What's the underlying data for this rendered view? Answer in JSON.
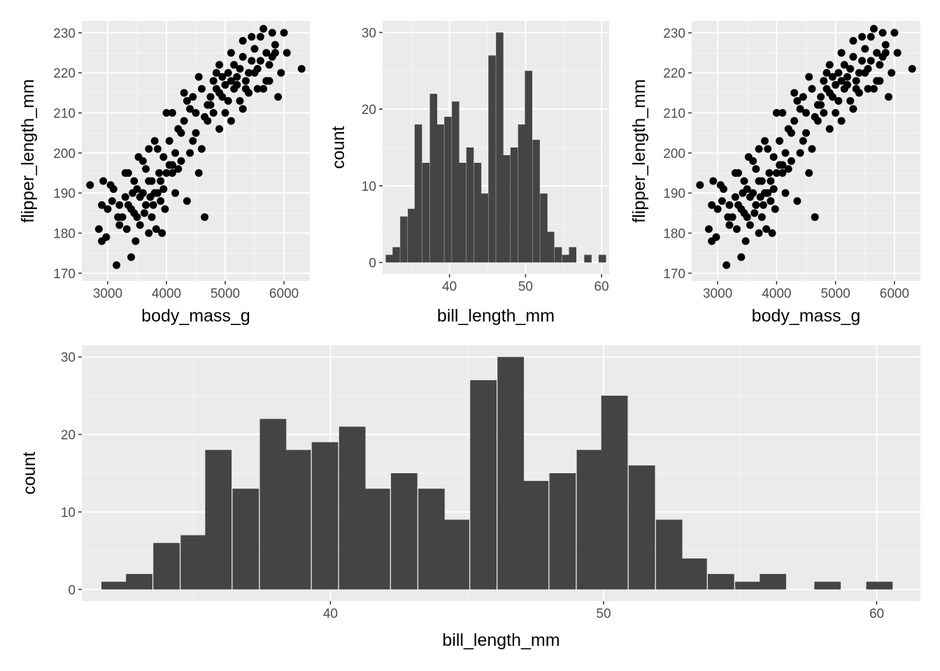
{
  "colors": {
    "panel_background": "#ebebeb",
    "grid_major": "#ffffff",
    "grid_minor": "#f5f5f5",
    "bar_fill": "#444444",
    "point_fill": "#000000",
    "tick_text": "#4d4d4d",
    "axis_text": "#000000"
  },
  "chart_data": [
    {
      "id": "scatter-left",
      "type": "scatter",
      "xlabel": "body_mass_g",
      "ylabel": "flipper_length_mm",
      "x_ticks": [
        3000,
        4000,
        5000,
        6000
      ],
      "y_ticks": [
        170,
        180,
        190,
        200,
        210,
        220,
        230
      ],
      "xlim": [
        2560,
        6440
      ],
      "ylim": [
        168.05,
        232.95
      ],
      "grid": true,
      "points": [
        [
          2700,
          192
        ],
        [
          2850,
          181
        ],
        [
          2900,
          187
        ],
        [
          2900,
          178
        ],
        [
          2925,
          193
        ],
        [
          2975,
          179
        ],
        [
          3000,
          186
        ],
        [
          3050,
          192
        ],
        [
          3075,
          188
        ],
        [
          3150,
          172
        ],
        [
          3175,
          184
        ],
        [
          3200,
          187
        ],
        [
          3250,
          184
        ],
        [
          3300,
          189
        ],
        [
          3325,
          181
        ],
        [
          3350,
          195
        ],
        [
          3400,
          174
        ],
        [
          3425,
          190
        ],
        [
          3450,
          185
        ],
        [
          3475,
          178
        ],
        [
          3500,
          191
        ],
        [
          3525,
          199
        ],
        [
          3550,
          182
        ],
        [
          3600,
          190
        ],
        [
          3625,
          185
        ],
        [
          3650,
          196
        ],
        [
          3700,
          180
        ],
        [
          3725,
          189
        ],
        [
          3750,
          193
        ],
        [
          3775,
          187
        ],
        [
          3800,
          190
        ],
        [
          3825,
          181
        ],
        [
          3850,
          201
        ],
        [
          3875,
          195
        ],
        [
          3900,
          193
        ],
        [
          3925,
          180
        ],
        [
          3950,
          191
        ],
        [
          3975,
          186
        ],
        [
          4000,
          210
        ],
        [
          4050,
          197
        ],
        [
          4100,
          195
        ],
        [
          4150,
          190
        ],
        [
          4200,
          206
        ],
        [
          4250,
          198
        ],
        [
          4300,
          215
        ],
        [
          4350,
          188
        ],
        [
          4400,
          200
        ],
        [
          4450,
          203
        ],
        [
          4500,
          210
        ],
        [
          4550,
          195
        ],
        [
          4600,
          201
        ],
        [
          4650,
          184
        ],
        [
          4700,
          208
        ],
        [
          4750,
          212
        ],
        [
          4800,
          210
        ],
        [
          4850,
          220
        ],
        [
          4900,
          215
        ],
        [
          4950,
          214
        ],
        [
          5000,
          217
        ],
        [
          5050,
          220
        ],
        [
          5100,
          218
        ],
        [
          5150,
          222
        ],
        [
          5200,
          217
        ],
        [
          5250,
          213
        ],
        [
          5300,
          224
        ],
        [
          5350,
          216
        ],
        [
          5400,
          220
        ],
        [
          5450,
          223
        ],
        [
          5500,
          226
        ],
        [
          5550,
          221
        ],
        [
          5600,
          229
        ],
        [
          5650,
          231
        ],
        [
          5700,
          225
        ],
        [
          5750,
          222
        ],
        [
          5800,
          230
        ],
        [
          5850,
          227
        ],
        [
          5900,
          214
        ],
        [
          5950,
          220
        ],
        [
          6000,
          230
        ],
        [
          6050,
          225
        ],
        [
          6300,
          221
        ],
        [
          3100,
          191
        ],
        [
          3200,
          182
        ],
        [
          3300,
          195
        ],
        [
          3400,
          186
        ],
        [
          3500,
          184
        ],
        [
          3600,
          198
        ],
        [
          3700,
          193
        ],
        [
          3800,
          203
        ],
        [
          3900,
          188
        ],
        [
          4000,
          195
        ],
        [
          4100,
          210
        ],
        [
          4200,
          196
        ],
        [
          4300,
          208
        ],
        [
          4400,
          211
        ],
        [
          4500,
          205
        ],
        [
          4600,
          216
        ],
        [
          4700,
          212
        ],
        [
          4800,
          218
        ],
        [
          4900,
          222
        ],
        [
          5000,
          210
        ],
        [
          5100,
          225
        ],
        [
          5200,
          219
        ],
        [
          5300,
          228
        ],
        [
          5400,
          215
        ],
        [
          5500,
          220
        ],
        [
          5600,
          223
        ],
        [
          5700,
          218
        ],
        [
          5800,
          224
        ],
        [
          5300,
          211
        ],
        [
          5100,
          208
        ],
        [
          4900,
          206
        ],
        [
          4100,
          197
        ],
        [
          3700,
          201
        ],
        [
          3350,
          187
        ],
        [
          3450,
          193
        ],
        [
          3550,
          189
        ],
        [
          3650,
          187
        ],
        [
          3750,
          184
        ],
        [
          3850,
          190
        ],
        [
          3950,
          199
        ],
        [
          4050,
          203
        ],
        [
          4150,
          200
        ],
        [
          4250,
          205
        ],
        [
          4350,
          213
        ],
        [
          4450,
          214
        ],
        [
          4550,
          219
        ],
        [
          4650,
          209
        ],
        [
          4750,
          214
        ],
        [
          4850,
          216
        ],
        [
          4950,
          219
        ],
        [
          5050,
          213
        ],
        [
          5150,
          216
        ],
        [
          5250,
          221
        ],
        [
          5350,
          218
        ],
        [
          5450,
          229
        ],
        [
          5550,
          216
        ],
        [
          5650,
          216
        ],
        [
          5750,
          218
        ],
        [
          5850,
          225
        ]
      ]
    },
    {
      "id": "hist-top",
      "type": "bar",
      "xlabel": "bill_length_mm",
      "ylabel": "count",
      "x_ticks": [
        40,
        50,
        60
      ],
      "y_ticks": [
        0,
        10,
        20,
        30
      ],
      "xlim": [
        31.2,
        61.0
      ],
      "ylim": [
        -1.5,
        31.5
      ],
      "grid": true,
      "bins": [
        [
          32.1,
          1
        ],
        [
          33.0,
          2
        ],
        [
          34.0,
          6
        ],
        [
          35.0,
          7
        ],
        [
          35.9,
          18
        ],
        [
          36.9,
          13
        ],
        [
          37.9,
          22
        ],
        [
          38.8,
          18
        ],
        [
          39.8,
          19
        ],
        [
          40.8,
          21
        ],
        [
          41.7,
          13
        ],
        [
          42.7,
          15
        ],
        [
          43.7,
          13
        ],
        [
          44.6,
          9
        ],
        [
          45.6,
          27
        ],
        [
          46.6,
          30
        ],
        [
          47.5,
          14
        ],
        [
          48.5,
          15
        ],
        [
          49.5,
          18
        ],
        [
          50.4,
          25
        ],
        [
          51.4,
          16
        ],
        [
          52.4,
          9
        ],
        [
          53.3,
          4
        ],
        [
          54.3,
          2
        ],
        [
          55.3,
          1
        ],
        [
          56.2,
          2
        ],
        [
          57.2,
          0
        ],
        [
          58.2,
          1
        ],
        [
          59.1,
          0
        ],
        [
          60.1,
          1
        ]
      ]
    },
    {
      "id": "scatter-right",
      "type": "scatter",
      "xlabel": "body_mass_g",
      "ylabel": "flipper_length_mm",
      "x_ticks": [
        3000,
        4000,
        5000,
        6000
      ],
      "y_ticks": [
        170,
        180,
        190,
        200,
        210,
        220,
        230
      ],
      "xlim": [
        2560,
        6440
      ],
      "ylim": [
        168.05,
        232.95
      ],
      "grid": true,
      "same_points_as": "scatter-left"
    },
    {
      "id": "hist-bottom",
      "type": "bar",
      "xlabel": "bill_length_mm",
      "ylabel": "count",
      "x_ticks": [
        40,
        50,
        60
      ],
      "y_ticks": [
        0,
        10,
        20,
        30
      ],
      "xlim": [
        30.9,
        61.6
      ],
      "ylim": [
        -1.5,
        31.5
      ],
      "grid": true,
      "same_bins_as": "hist-top"
    }
  ]
}
